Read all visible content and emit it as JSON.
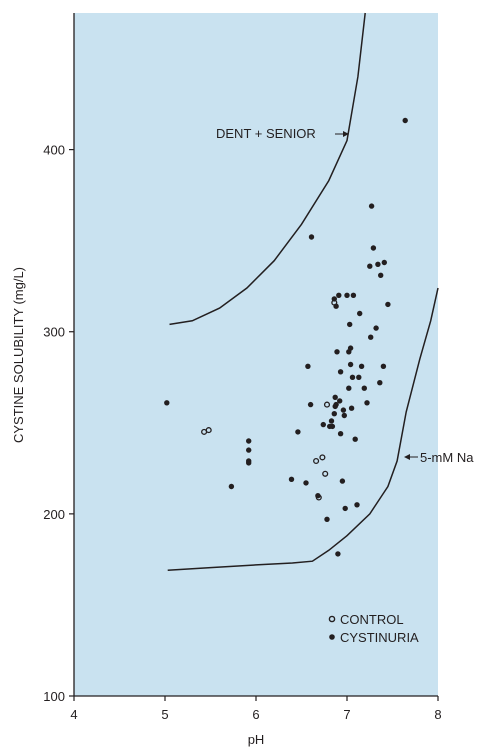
{
  "colors": {
    "plot_background": "#c9e2f0",
    "axis": "#231f20",
    "cystinuria_marker": "#231f20",
    "control_marker_fill": "#c9e2f0"
  },
  "chart_data": {
    "type": "scatter",
    "title": "",
    "xlabel": "pH",
    "ylabel": "CYSTINE SOLUBILITY (mg/L)",
    "xlim": [
      4,
      8
    ],
    "ylim": [
      100,
      475
    ],
    "xticks": [
      4,
      5,
      6,
      7,
      8
    ],
    "yticks": [
      100,
      200,
      300,
      400
    ],
    "grid": false,
    "legend_position": "bottom-right",
    "series": [
      {
        "name": "CONTROL",
        "marker": "open-circle",
        "x": [
          5.43,
          5.48,
          6.66,
          6.73,
          6.76,
          6.78,
          6.86,
          6.69
        ],
        "y": [
          245,
          246,
          229,
          231,
          222,
          260,
          316,
          209
        ]
      },
      {
        "name": "CYSTINURIA",
        "marker": "filled-circle",
        "x": [
          5.02,
          5.73,
          5.92,
          5.92,
          5.92,
          5.92,
          6.39,
          6.46,
          6.55,
          6.57,
          6.6,
          6.68,
          6.74,
          6.78,
          6.81,
          6.83,
          6.84,
          6.86,
          6.86,
          6.87,
          6.88,
          6.89,
          6.9,
          6.91,
          6.92,
          6.93,
          6.95,
          6.96,
          6.97,
          6.98,
          7.0,
          7.02,
          7.03,
          7.04,
          7.05,
          7.06,
          7.07,
          7.09,
          7.11,
          7.13,
          7.16,
          7.19,
          7.22,
          7.25,
          7.26,
          7.27,
          7.29,
          7.32,
          7.34,
          7.36,
          7.37,
          7.4,
          7.41,
          7.45,
          7.64,
          6.61,
          6.88,
          7.02,
          7.14,
          7.04,
          6.93,
          6.87
        ],
        "y": [
          261,
          215,
          240,
          235,
          229,
          228,
          219,
          245,
          217,
          281,
          260,
          210,
          249,
          197,
          248,
          251,
          248,
          255,
          318,
          259,
          260,
          289,
          178,
          320,
          262,
          244,
          218,
          257,
          254,
          203,
          320,
          269,
          304,
          282,
          258,
          275,
          320,
          241,
          205,
          275,
          281,
          269,
          261,
          336,
          297,
          369,
          346,
          302,
          337,
          272,
          331,
          281,
          338,
          315,
          416,
          352,
          314,
          289,
          310,
          291,
          278,
          264
        ]
      }
    ],
    "curves": [
      {
        "label": "DENT + SENIOR",
        "points": [
          [
            5.05,
            304
          ],
          [
            5.3,
            306
          ],
          [
            5.6,
            313
          ],
          [
            5.9,
            324
          ],
          [
            6.2,
            339
          ],
          [
            6.5,
            359
          ],
          [
            6.8,
            383
          ],
          [
            7.0,
            405
          ],
          [
            7.12,
            440
          ],
          [
            7.2,
            475
          ]
        ]
      },
      {
        "label": "5-mM Na",
        "points": [
          [
            5.03,
            169
          ],
          [
            5.5,
            170.5
          ],
          [
            6.0,
            172
          ],
          [
            6.4,
            173
          ],
          [
            6.62,
            174
          ],
          [
            6.8,
            180
          ],
          [
            7.0,
            188
          ],
          [
            7.25,
            200
          ],
          [
            7.45,
            215
          ],
          [
            7.55,
            229
          ],
          [
            7.65,
            256
          ],
          [
            7.8,
            285
          ],
          [
            7.92,
            306
          ],
          [
            8.0,
            324
          ]
        ]
      }
    ],
    "annotations": [
      {
        "text": "DENT + SENIOR",
        "arrow_to": "DENT + SENIOR"
      },
      {
        "text": "5-mM Na",
        "arrow_to": "5-mM Na"
      }
    ]
  }
}
